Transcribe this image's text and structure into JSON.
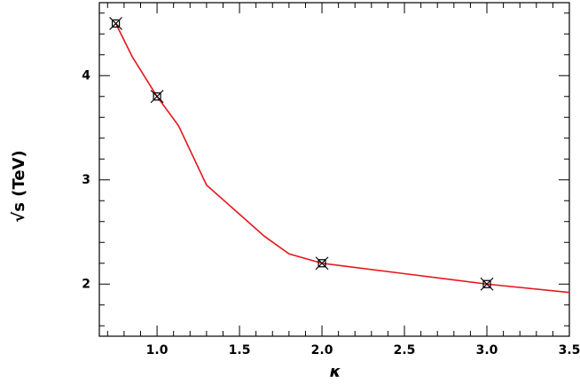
{
  "chart_data": {
    "type": "line",
    "xlabel": "κ",
    "ylabel": "√s  (TeV)",
    "xlim": [
      0.65,
      3.5
    ],
    "ylim": [
      1.5,
      4.7
    ],
    "xticks": [
      {
        "value": 1,
        "label": "1.0"
      },
      1.5,
      {
        "value": 2,
        "label": "2.0"
      },
      2.5,
      {
        "value": 3,
        "label": "3.0"
      },
      3.5
    ],
    "yticks": [
      2,
      3,
      4
    ],
    "xminorticks": [
      0.7,
      0.8,
      0.9,
      1.1,
      1.2,
      1.3,
      1.4,
      1.6,
      1.7,
      1.8,
      1.9,
      2.1,
      2.2,
      2.3,
      2.4,
      2.6,
      2.7,
      2.8,
      2.9,
      3.1,
      3.2,
      3.3,
      3.4
    ],
    "yminorticks": [
      1.6,
      1.8,
      2.2,
      2.4,
      2.6,
      2.8,
      3.2,
      3.4,
      3.6,
      3.8,
      4.2,
      4.4,
      4.6
    ],
    "series": [
      {
        "color": "#e8141c",
        "style": "line",
        "x": [
          0.75,
          0.85,
          1.0,
          1.13,
          1.3,
          1.5,
          1.65,
          1.8,
          2.0,
          2.5,
          3.0,
          3.5
        ],
        "values": [
          4.5,
          4.18,
          3.8,
          3.52,
          2.95,
          2.67,
          2.46,
          2.29,
          2.2,
          2.1,
          2.0,
          1.92
        ]
      },
      {
        "color": "#000000",
        "style": "markers",
        "x": [
          0.75,
          1.0,
          2.0,
          3.0
        ],
        "values": [
          4.5,
          3.8,
          2.2,
          2.0
        ]
      }
    ]
  }
}
